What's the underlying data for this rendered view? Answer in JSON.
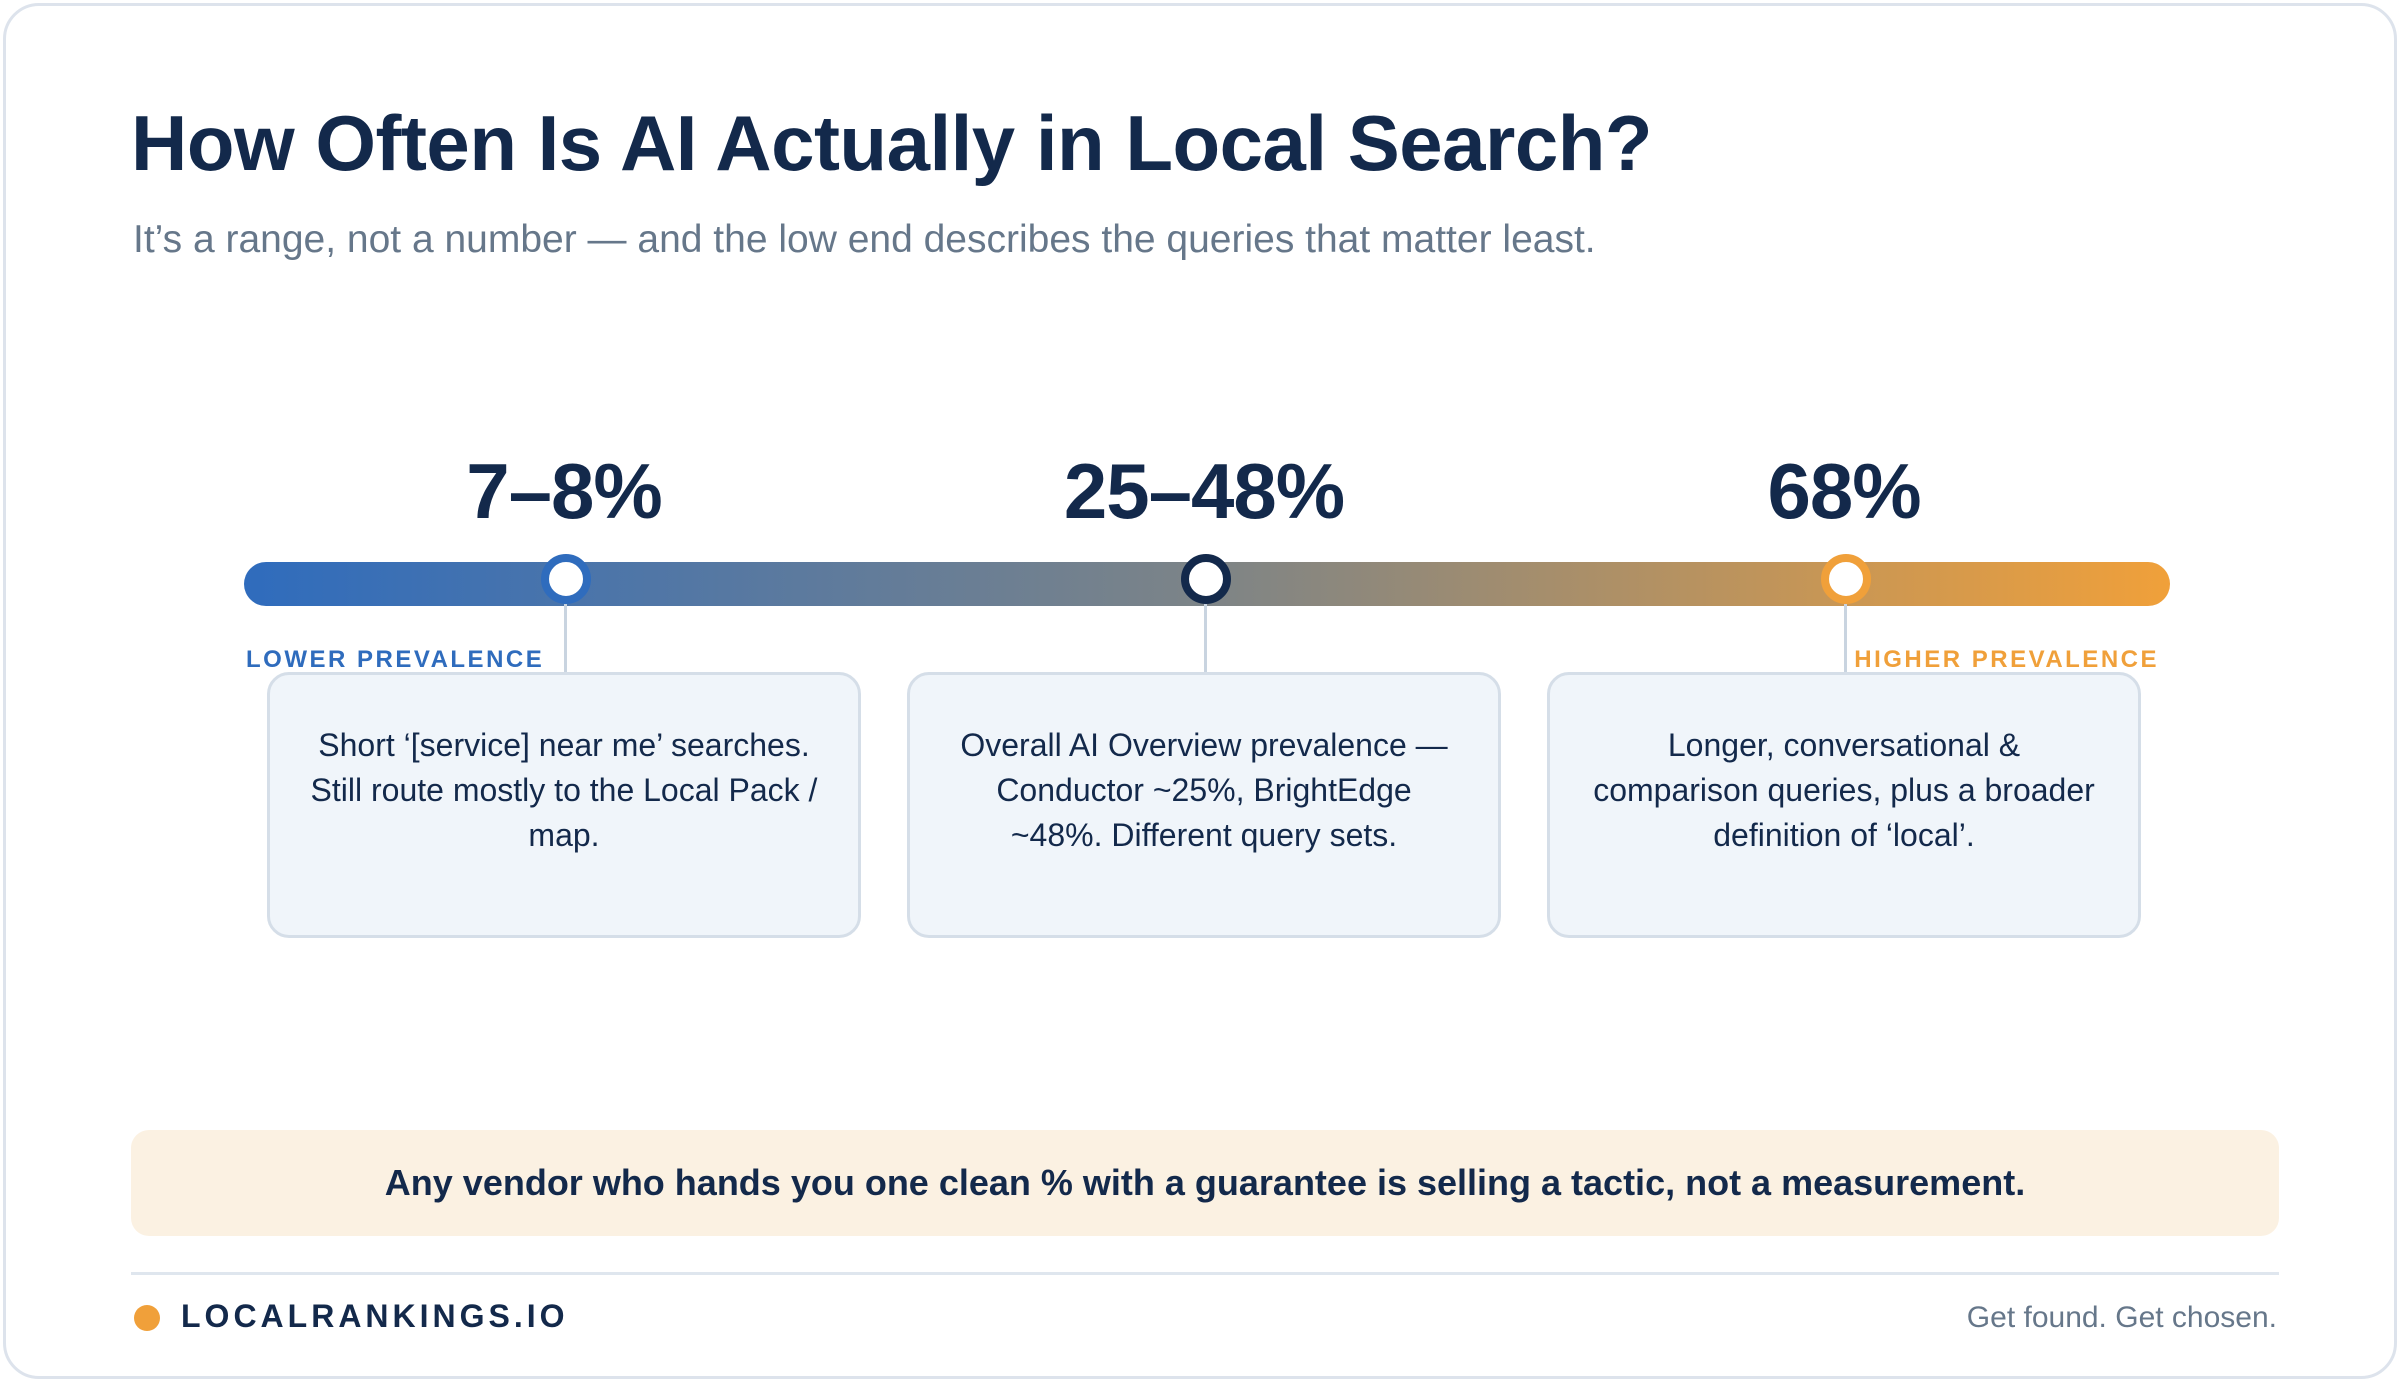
{
  "header": {
    "title": "How Often Is AI Actually in Local Search?",
    "subtitle": "It’s a range, not a number — and the low end describes the queries that matter least."
  },
  "scale": {
    "low_label": "LOWER PREVALENCE",
    "high_label": "HIGHER PREVALENCE",
    "gradient_colors": [
      "#2f6cbd",
      "#7d8487",
      "#f0a03a"
    ],
    "points": [
      {
        "value_label": "7–8%",
        "marker_color": "#2f6cbd",
        "description": "Short ‘[service] near me’ searches. Still route mostly to the Local Pack / map."
      },
      {
        "value_label": "25–48%",
        "marker_color": "#13294b",
        "description": "Overall AI Overview prevalence — Conductor ~25%, BrightEdge ~48%. Different query sets."
      },
      {
        "value_label": "68%",
        "marker_color": "#f0a03a",
        "description": "Longer, conversational & comparison queries, plus a broader definition of ‘local’."
      }
    ]
  },
  "callout": {
    "text": "Any vendor who hands you one clean % with a guarantee is selling a tactic, not a measurement."
  },
  "footer": {
    "brand": "LOCALRANKINGS.IO",
    "brand_dot_color": "#f0a03a",
    "tagline": "Get found. Get chosen."
  }
}
